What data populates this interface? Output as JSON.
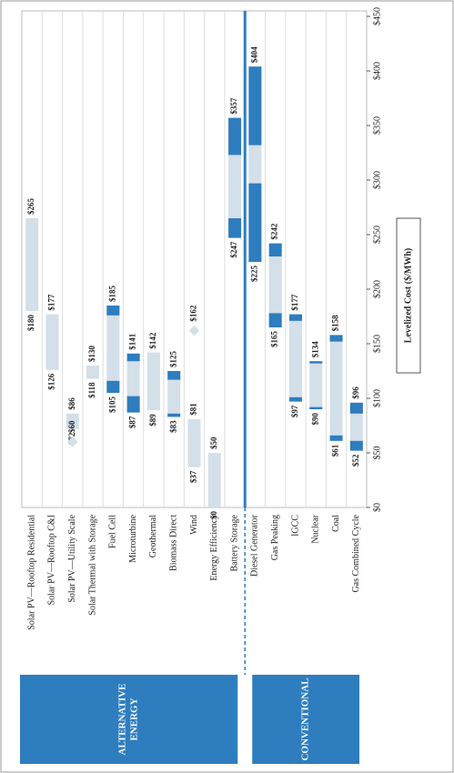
{
  "chart_data": {
    "type": "range_bar",
    "axis_title": "Levelized Cost ($/MWh)",
    "categories": [
      "Solar PV—Rooftop Residential",
      "Solar PV—Rooftop C&I",
      "Solar PV—Utility Scale",
      "Solar Thermal with Storage",
      "Fuel Cell",
      "Microturbine",
      "Geothermal",
      "Biomass Direct",
      "Wind",
      "Energy Efficiency",
      "Battery Storage",
      "Diesel Generator",
      "Gas Peaking",
      "IGCC",
      "Nuclear",
      "Coal",
      "Gas Combined Cycle"
    ],
    "low": [
      180,
      126,
      72,
      118,
      105,
      87,
      89,
      83,
      37,
      0,
      247,
      225,
      165,
      97,
      90,
      61,
      52
    ],
    "low_labels": [
      "$180",
      "$126",
      "$72",
      "$118",
      "$105",
      "$87",
      "$89",
      "$83",
      "$37",
      "$0",
      "$247",
      "$225",
      "$165",
      "$97",
      "$90",
      "$61",
      "$52"
    ],
    "high": [
      265,
      177,
      86,
      130,
      185,
      141,
      142,
      125,
      81,
      50,
      357,
      404,
      242,
      177,
      134,
      158,
      96
    ],
    "high_labels": [
      "$265",
      "$177",
      "$86",
      "$130",
      "$185",
      "$141",
      "$142",
      "$125",
      "$81",
      "$50",
      "$357",
      "$404",
      "$242",
      "$177",
      "$134",
      "$158",
      "$96"
    ],
    "dark_segments": [
      [],
      [],
      [],
      [],
      [
        [
          105,
          116
        ],
        [
          176,
          185
        ]
      ],
      [
        [
          87,
          102
        ],
        [
          134,
          141
        ]
      ],
      [],
      [
        [
          83,
          86
        ],
        [
          117,
          125
        ]
      ],
      [],
      [],
      [
        [
          247,
          265
        ],
        [
          323,
          357
        ]
      ],
      [
        [
          225,
          297
        ],
        [
          332,
          404
        ]
      ],
      [
        [
          165,
          178
        ],
        [
          230,
          242
        ]
      ],
      [
        [
          97,
          101
        ],
        [
          171,
          177
        ]
      ],
      [
        [
          90,
          92
        ],
        [
          132,
          134
        ]
      ],
      [
        [
          61,
          66
        ],
        [
          152,
          158
        ]
      ],
      [
        [
          52,
          61
        ],
        [
          86,
          96
        ]
      ]
    ],
    "diamonds": [
      null,
      null,
      60,
      null,
      null,
      null,
      null,
      null,
      162,
      null,
      null,
      null,
      null,
      null,
      null,
      null,
      null
    ],
    "diamond_labels": [
      null,
      null,
      "$60",
      null,
      null,
      null,
      null,
      null,
      "$162",
      null,
      null,
      null,
      null,
      null,
      null,
      null,
      null
    ],
    "light_color": "#d3dfe9",
    "dark_color": "#2e7dbf",
    "ylim": [
      0,
      450
    ],
    "yticks": [
      {
        "value": 0,
        "label": "$0"
      },
      {
        "value": 50,
        "label": "$50"
      },
      {
        "value": 100,
        "label": "$100"
      },
      {
        "value": 150,
        "label": "$150"
      },
      {
        "value": 200,
        "label": "$200"
      },
      {
        "value": 250,
        "label": "$250"
      },
      {
        "value": 300,
        "label": "$300"
      },
      {
        "value": 350,
        "label": "$350"
      },
      {
        "value": 400,
        "label": "$400"
      },
      {
        "value": 450,
        "label": "$450"
      }
    ],
    "groups": [
      {
        "lines": [
          "ALTERNATIVE",
          "ENERGY"
        ],
        "count": 11
      },
      {
        "lines": [
          "CONVENTIONAL"
        ],
        "count": 6
      }
    ]
  }
}
